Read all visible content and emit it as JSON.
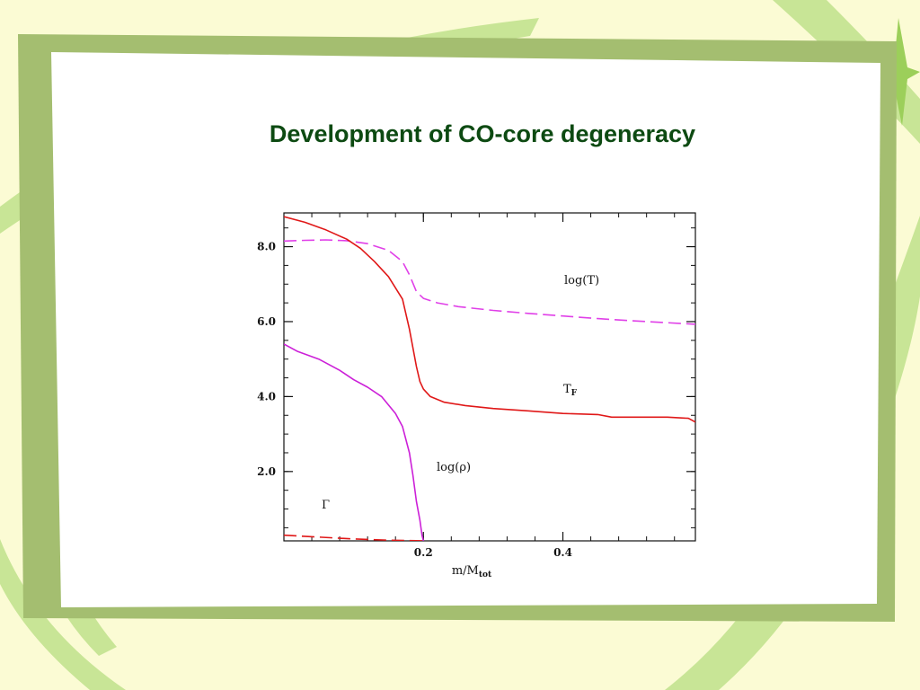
{
  "slide": {
    "title": "Development of CO-core degeneracy",
    "colors": {
      "background": "#fbfbd4",
      "frame": "#a4be70",
      "swirl": "#c8e596",
      "panel": "#ffffff",
      "title": "#0d4a12"
    }
  },
  "chart_data": {
    "type": "line",
    "title": "",
    "xlabel": "m/M",
    "xlabel_sub": "tot",
    "ylabel": "",
    "xlim": [
      0,
      0.59
    ],
    "ylim": [
      0.15,
      8.9
    ],
    "xticks": [
      0.2,
      0.4
    ],
    "xtick_labels": [
      "0.2",
      "0.4"
    ],
    "yticks": [
      2.0,
      4.0,
      6.0,
      8.0
    ],
    "ytick_labels": [
      "2.0",
      "4.0",
      "6.0",
      "8.0"
    ],
    "grid": false,
    "series": [
      {
        "name": "log(T)",
        "color": "#e040e8",
        "dash": true,
        "x": [
          0.0,
          0.03,
          0.06,
          0.09,
          0.12,
          0.15,
          0.17,
          0.18,
          0.19,
          0.2,
          0.22,
          0.25,
          0.3,
          0.35,
          0.4,
          0.45,
          0.5,
          0.55,
          0.59
        ],
        "y": [
          8.15,
          8.17,
          8.18,
          8.16,
          8.08,
          7.9,
          7.6,
          7.25,
          6.8,
          6.62,
          6.5,
          6.4,
          6.3,
          6.22,
          6.15,
          6.08,
          6.02,
          5.97,
          5.93
        ]
      },
      {
        "name": "T_F",
        "color": "#e01818",
        "dash": false,
        "x": [
          0.0,
          0.03,
          0.06,
          0.09,
          0.11,
          0.13,
          0.15,
          0.17,
          0.18,
          0.19,
          0.195,
          0.2,
          0.21,
          0.23,
          0.26,
          0.3,
          0.35,
          0.4,
          0.45,
          0.47,
          0.5,
          0.55,
          0.58,
          0.59
        ],
        "y": [
          8.8,
          8.65,
          8.45,
          8.2,
          7.95,
          7.6,
          7.2,
          6.6,
          5.8,
          4.8,
          4.4,
          4.2,
          4.0,
          3.85,
          3.76,
          3.68,
          3.62,
          3.55,
          3.52,
          3.45,
          3.45,
          3.45,
          3.42,
          3.32
        ]
      },
      {
        "name": "log(ρ)",
        "color": "#cc20d8",
        "dash": false,
        "x": [
          0.0,
          0.02,
          0.05,
          0.08,
          0.1,
          0.12,
          0.14,
          0.16,
          0.17,
          0.18,
          0.185,
          0.19,
          0.195,
          0.198,
          0.2
        ],
        "y": [
          5.4,
          5.2,
          5.0,
          4.7,
          4.45,
          4.25,
          4.0,
          3.55,
          3.2,
          2.5,
          1.9,
          1.2,
          0.7,
          0.3,
          0.15
        ]
      },
      {
        "name": "Γ",
        "color": "#e01818",
        "dash": true,
        "x": [
          0.0,
          0.05,
          0.1,
          0.15,
          0.2
        ],
        "y": [
          0.3,
          0.25,
          0.2,
          0.17,
          0.15
        ]
      }
    ],
    "curve_labels": [
      {
        "text": "log(T)",
        "color": "#111111"
      },
      {
        "text": "T",
        "sub": "F",
        "color": "#e01818"
      },
      {
        "text": "log(ρ)",
        "color": "#111111"
      },
      {
        "text": "Γ",
        "color": "#e01818"
      }
    ]
  }
}
